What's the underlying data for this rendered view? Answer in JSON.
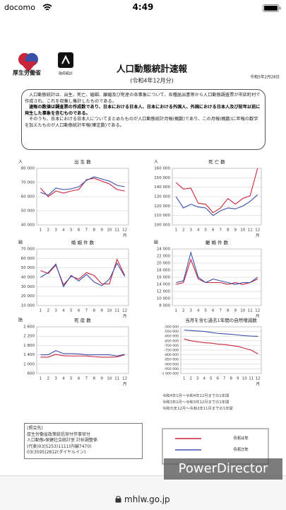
{
  "status_bar": {
    "carrier": "docomo",
    "time": "4:49"
  },
  "header": {
    "ministry": "厚生労働省",
    "stats_logo": "政府統計",
    "title": "人口動態統計速報",
    "subtitle": "(令和4年12月分)",
    "date": "令和5年2月28日"
  },
  "summary": {
    "paragraphs": [
      "人口動態統計は、出生、死亡、婚姻、離婚及び死産の各事象について、各種届出書等から人口動態調査票が市区町村で作成され、これを収集し集計したものである。",
      "速報の数値は調査票の作成数であり、日本における日本人、日本における外国人、外国における日本人及び前年以前に発生した事象を含むものである。",
      "そのうち、日本における日本人についてまとめたものが人口動態統計月報(概数)であり、この月報(概数)に年報の数字を加えたものが人口動態統計年報(確定数)である。"
    ]
  },
  "chart_data": [
    {
      "type": "line",
      "title": "出 生 数",
      "unit": "人",
      "x_label": "月",
      "categories": [
        "1",
        "2",
        "3",
        "4",
        "5",
        "6",
        "7",
        "8",
        "9",
        "10",
        "11",
        "12"
      ],
      "ylim": [
        40000,
        80000
      ],
      "yticks": [
        {
          "value": 40000,
          "label": "40 000"
        },
        {
          "value": 50000,
          "label": "50 000"
        },
        {
          "value": 60000,
          "label": "60 000"
        },
        {
          "value": 70000,
          "label": "70 000"
        },
        {
          "value": 80000,
          "label": "80 000"
        }
      ],
      "series": [
        {
          "color": "#c8243c",
          "values": [
            66000,
            60000,
            64000,
            62500,
            64000,
            65000,
            72000,
            73000,
            71000,
            69000,
            65000,
            64000
          ]
        },
        {
          "color": "#3c4fa8",
          "values": [
            63000,
            61000,
            66000,
            65000,
            65500,
            67000,
            71500,
            74000,
            72500,
            71000,
            68000,
            67000
          ]
        }
      ]
    },
    {
      "type": "line",
      "title": "死 亡 数",
      "unit": "人",
      "x_label": "月",
      "categories": [
        "1",
        "2",
        "3",
        "4",
        "5",
        "6",
        "7",
        "8",
        "9",
        "10",
        "11",
        "12"
      ],
      "ylim": [
        100000,
        160000
      ],
      "yticks": [
        {
          "value": 100000,
          "label": "100 000"
        },
        {
          "value": 110000,
          "label": "110 000"
        },
        {
          "value": 120000,
          "label": "120 000"
        },
        {
          "value": 130000,
          "label": "130 000"
        },
        {
          "value": 140000,
          "label": "140 000"
        },
        {
          "value": 150000,
          "label": "150 000"
        },
        {
          "value": 160000,
          "label": "160 000"
        }
      ],
      "series": [
        {
          "color": "#c8243c",
          "values": [
            145000,
            138000,
            139000,
            123000,
            122000,
            113000,
            118000,
            128000,
            122000,
            128000,
            131000,
            160000
          ]
        },
        {
          "color": "#3c4fa8",
          "values": [
            130000,
            118000,
            122000,
            119000,
            118000,
            110000,
            115000,
            118000,
            117000,
            120000,
            125000,
            132000
          ]
        }
      ]
    },
    {
      "type": "line",
      "title": "婚 姻 件 数",
      "unit": "組",
      "x_label": "月",
      "categories": [
        "1",
        "2",
        "3",
        "4",
        "5",
        "6",
        "7",
        "8",
        "9",
        "10",
        "11",
        "12"
      ],
      "ylim": [
        10000,
        70000
      ],
      "yticks": [
        {
          "value": 10000,
          "label": "10 000"
        },
        {
          "value": 20000,
          "label": "20 000"
        },
        {
          "value": 30000,
          "label": "30 000"
        },
        {
          "value": 40000,
          "label": "40 000"
        },
        {
          "value": 50000,
          "label": "50 000"
        },
        {
          "value": 60000,
          "label": "60 000"
        },
        {
          "value": 70000,
          "label": "70 000"
        }
      ],
      "series": [
        {
          "color": "#c8243c",
          "values": [
            47000,
            44000,
            53000,
            32000,
            41000,
            38000,
            45000,
            42000,
            33000,
            33000,
            59000,
            42000
          ]
        },
        {
          "color": "#3c4fa8",
          "values": [
            40000,
            45000,
            54000,
            30000,
            42000,
            36000,
            43000,
            35000,
            31000,
            38000,
            55000,
            41000
          ]
        }
      ]
    },
    {
      "type": "line",
      "title": "離 婚 件 数",
      "unit": "組",
      "x_label": "月",
      "categories": [
        "1",
        "2",
        "3",
        "4",
        "5",
        "6",
        "7",
        "8",
        "9",
        "10",
        "11",
        "12"
      ],
      "ylim": [
        8000,
        24000
      ],
      "yticks": [
        {
          "value": 8000,
          "label": "8 000"
        },
        {
          "value": 10000,
          "label": "10 000"
        },
        {
          "value": 12000,
          "label": "12 000"
        },
        {
          "value": 14000,
          "label": "14 000"
        },
        {
          "value": 16000,
          "label": "16 000"
        },
        {
          "value": 18000,
          "label": "18 000"
        },
        {
          "value": 20000,
          "label": "20 000"
        },
        {
          "value": 22000,
          "label": "22 000"
        },
        {
          "value": 24000,
          "label": "24 000"
        }
      ],
      "series": [
        {
          "color": "#c8243c",
          "values": [
            14000,
            14500,
            21000,
            15500,
            14500,
            14500,
            14500,
            14000,
            14500,
            14000,
            14500,
            15500
          ]
        },
        {
          "color": "#3c4fa8",
          "values": [
            14500,
            15000,
            23000,
            16000,
            14500,
            15500,
            15000,
            14500,
            14000,
            14500,
            14500,
            16000
          ]
        }
      ]
    },
    {
      "type": "line",
      "title": "死 産 数",
      "unit": "胎",
      "x_label": "月",
      "categories": [
        "1",
        "2",
        "3",
        "4",
        "5",
        "6",
        "7",
        "8",
        "9",
        "10",
        "11",
        "12"
      ],
      "ylim": [
        600,
        2600
      ],
      "yticks": [
        600,
        {
          "value": 1000,
          "label": "1 000"
        },
        {
          "value": 1400,
          "label": "1 400"
        },
        {
          "value": 1800,
          "label": "1 800"
        },
        {
          "value": 2200,
          "label": "2 200"
        },
        {
          "value": 2600,
          "label": "2 600"
        }
      ],
      "series": [
        {
          "color": "#c8243c",
          "values": [
            1300,
            1300,
            1420,
            1360,
            1350,
            1350,
            1350,
            1320,
            1300,
            1300,
            1310,
            1400
          ]
        },
        {
          "color": "#3c4fa8",
          "values": [
            1400,
            1400,
            1580,
            1450,
            1450,
            1440,
            1400,
            1400,
            1400,
            1400,
            1350,
            1420
          ]
        }
      ]
    },
    {
      "type": "line",
      "title": "当月を含む過去1年間の自然増減数",
      "x_label": "月",
      "categories": [
        "1",
        "2",
        "3",
        "4",
        "5",
        "6",
        "7",
        "8",
        "9",
        "10",
        "11",
        "12"
      ],
      "ylim": [
        -1000000,
        -500000
      ],
      "yticks": [
        {
          "value": -1000000,
          "label": "-1 000 000"
        },
        {
          "value": -950000,
          "label": "-950 000"
        },
        {
          "value": -900000,
          "label": "-900 000"
        },
        {
          "value": -850000,
          "label": "-850 000"
        },
        {
          "value": -800000,
          "label": "-800 000"
        },
        {
          "value": -750000,
          "label": "-750 000"
        },
        {
          "value": -700000,
          "label": "-700 000"
        },
        {
          "value": -650000,
          "label": "-650 000"
        },
        {
          "value": -600000,
          "label": "-600 000"
        },
        {
          "value": -550000,
          "label": "-550 000"
        },
        {
          "value": -500000,
          "label": "-500 000"
        }
      ],
      "series": [
        {
          "color": "#c8243c",
          "values": [
            -630000,
            -650000,
            -660000,
            -670000,
            -675000,
            -685000,
            -690000,
            -700000,
            -710000,
            -730000,
            -750000,
            -790000
          ]
        },
        {
          "color": "#3c4fa8",
          "values": [
            -535000,
            -540000,
            -545000,
            -550000,
            -560000,
            -570000,
            -575000,
            -580000,
            -588000,
            -595000,
            -600000,
            -602000
          ]
        }
      ]
    }
  ],
  "notes": [
    "令和4年1月〜令和4年12月までの1年間",
    "令和3年1月〜令和3年12月までの1年間",
    "令和元年12月〜令和2年11月までの1年間"
  ],
  "legend": [
    {
      "name": "令和4年",
      "color": "#c8243c"
    },
    {
      "name": "令和3年",
      "color": "#3c4fa8"
    }
  ],
  "contact": {
    "lines": [
      "(照会先)",
      "厚生労働省政策統括官付参事官付",
      "人口動態・保健社会統計室 計析調整係",
      "(代表)03(5253)1111(内線7470)",
      "03(3595)2812(ダイヤルイン)"
    ]
  },
  "browser": {
    "url": "mhlw.go.jp"
  },
  "watermark": "PowerDirector"
}
